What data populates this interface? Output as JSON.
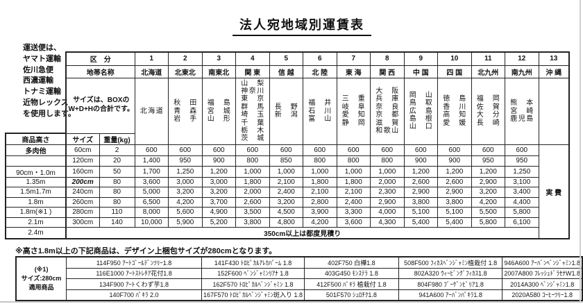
{
  "title": "法人宛地域別運賃表",
  "carrier_note_lines": [
    "運送便は、",
    "ヤマト運輸",
    "佐川急便",
    "西濃運輸",
    "トナミ運輸",
    "近物レックス",
    "を使用します。"
  ],
  "main_table": {
    "kubun_label": "区　分",
    "chitai_label": "地帯名称",
    "size_note_lines": [
      "サイズは、BOXの",
      "W+D+Hの合計です。"
    ],
    "product_height_label": "商品高さ",
    "size_label": "サイズ",
    "weight_label": "重量(kg)",
    "okinawa_fee": "実 費",
    "zones": [
      {
        "no": "1",
        "name": "北海道",
        "prefs": [
          "北海道"
        ]
      },
      {
        "no": "2",
        "name": "北東北",
        "prefs": [
          "秋 田",
          "青 森",
          "岩 手"
        ]
      },
      {
        "no": "3",
        "name": "南東北",
        "prefs": [
          "福 島",
          "宮 城",
          "山 形"
        ]
      },
      {
        "no": "4",
        "name": "関 東",
        "prefs": [
          "山 梨",
          "神奈川",
          "東 京",
          "群 馬",
          "埼 玉",
          "千 葉",
          "栃 木",
          "茨 城"
        ]
      },
      {
        "no": "5",
        "name": "信 越",
        "prefs": [
          "長 野",
          "新 潟"
        ]
      },
      {
        "no": "6",
        "name": "北 陸",
        "prefs": [
          "福 井",
          "石 川",
          "富 山"
        ]
      },
      {
        "no": "7",
        "name": "東 海",
        "prefs": [
          "三 重",
          "岐 阜",
          "愛 知",
          "静 岡"
        ]
      },
      {
        "no": "8",
        "name": "関 西",
        "prefs": [
          "大 阪",
          "兵 庫",
          "奈 良",
          "京 都",
          "滋 賀",
          "和歌山"
        ]
      },
      {
        "no": "9",
        "name": "中 国",
        "prefs": [
          "岡 山",
          "鳥 取",
          "広 島",
          "島 根",
          "山 口"
        ]
      },
      {
        "no": "10",
        "name": "四 国",
        "prefs": [
          "徳 島",
          "香 川",
          "高 知",
          "愛 媛"
        ]
      },
      {
        "no": "11",
        "name": "北九州",
        "prefs": [
          "福 岡",
          "佐 賀",
          "大 分",
          "長 崎"
        ]
      },
      {
        "no": "12",
        "name": "南九州",
        "prefs": [
          "熊 本",
          "宮 崎",
          "鹿児島"
        ]
      },
      {
        "no": "13",
        "name": "沖 縄",
        "prefs": []
      }
    ],
    "rows": [
      {
        "height": "多肉他",
        "size": "60cm",
        "weight": "2",
        "size_red": false,
        "fees": [
          "600",
          "600",
          "600",
          "600",
          "600",
          "600",
          "600",
          "600",
          "600",
          "600",
          "600",
          "600"
        ]
      },
      {
        "height": "",
        "size": "120cm",
        "weight": "20",
        "size_red": false,
        "fees": [
          "1,400",
          "950",
          "900",
          "800",
          "850",
          "800",
          "800",
          "800",
          "900",
          "900",
          "950",
          "950"
        ]
      },
      {
        "height": "90cm・1.0m",
        "size": "160cm",
        "weight": "50",
        "size_red": false,
        "fees": [
          "1,700",
          "1,250",
          "1,200",
          "1,000",
          "1,000",
          "1,000",
          "1,000",
          "1,000",
          "1,200",
          "1,200",
          "1,200",
          "1,250"
        ]
      },
      {
        "height": "1.35m",
        "size": "200cm",
        "weight": "80",
        "size_red": true,
        "fees": [
          "3,600",
          "3,000",
          "3,000",
          "1,800",
          "2,100",
          "1,800",
          "1,800",
          "2,000",
          "2,600",
          "2,600",
          "2,900",
          "3,100"
        ]
      },
      {
        "height": "1.5m1.7m",
        "size": "240cm",
        "weight": "80",
        "size_red": false,
        "fees": [
          "5,000",
          "3,200",
          "3,200",
          "2,000",
          "2,400",
          "2,100",
          "2,100",
          "2,300",
          "2,900",
          "2,900",
          "3,200",
          "3,400"
        ]
      },
      {
        "height": "1.8m",
        "size": "260cm",
        "weight": "80",
        "size_red": false,
        "fees": [
          "6,500",
          "4,200",
          "3,700",
          "2,600",
          "3,200",
          "2,800",
          "2,400",
          "2,900",
          "3,800",
          "3,800",
          "4,200",
          "4,400"
        ]
      },
      {
        "height": "1.8m(※1 )",
        "size": "280cm",
        "weight": "110",
        "size_red": false,
        "fees": [
          "8,000",
          "5,600",
          "4,900",
          "3,500",
          "4,500",
          "3,900",
          "3,300",
          "4,000",
          "5,100",
          "5,100",
          "5,500",
          "5,800"
        ]
      },
      {
        "height": "2.1m",
        "size": "300cm",
        "weight": "140",
        "size_red": false,
        "fees": [
          "10,000",
          "5,900",
          "5,200",
          "3,800",
          "4,800",
          "4,200",
          "3,600",
          "4,300",
          "5,400",
          "5,400",
          "5,800",
          "6,100"
        ]
      }
    ],
    "over_row": {
      "height": "2.4m",
      "note": "350cm以上は都度見積り"
    }
  },
  "footnote": "※高さ1.8m以上の下記商品は、デザイン上梱包サイズが280cmとなります。",
  "size280_table": {
    "label_lines": [
      "(※1)",
      "サイズ:280cm",
      "適用商品"
    ],
    "columns": [
      [
        "114F950 ｱｰﾄｺﾞｰﾙﾃﾞﾝﾂﾘｰ1.8",
        "116E1000 ｱｰﾄｽﾄﾚﾁｱ花付1.8",
        "134F900 ｱｰﾄくわず芋1.8",
        "140F700 ﾊﾟｷﾗ 2.0"
      ],
      [
        "141F430 ﾄﾛﾋﾟｶﾙｱﾚｶﾊﾟｰﾑ 1.8",
        "152F600 ﾍﾞﾝｼﾞｬﾐﾝﾘｱﾅ 1.8",
        "162F570 ﾄﾛﾋﾟｶﾙﾍﾞﾝｼﾞｬﾐﾝ 1.8",
        "167F570 ﾄﾛﾋﾟｶﾙﾍﾞﾝｼﾞｬﾐﾝ斑入り 1.8"
      ],
      [
        "402F750 白樺1.8",
        "403G450 ﾓﾝｽﾃﾗ 1.8",
        "412F500 ﾊﾟｷﾗ 植栽付 1.8",
        "501F570 ｼｭﾛﾁｸ1.8"
      ],
      [
        "508F500 ﾌｨｶｽﾍﾞﾝｼﾞｬﾐﾝ植栽付 1.8",
        "802A320 ｳｨｰﾋﾞﾝｸﾞﾌｨｶｽ1.8",
        "804F980 ﾌﾞｰｹﾞﾝﾋﾞﾘｱ1.8",
        "941A600 ｱｰﾊﾞﾝﾊﾟｷﾗ1.8"
      ],
      [
        "946A600 ｱｰﾊﾞﾝﾍﾞﾝｼﾞｬﾐﾝ1.8",
        "2007A800 ﾌﾚｯｼｭﾄﾞﾗｾﾅW1.8",
        "2014A300 ﾍﾞﾝｼﾞｬﾐﾝ1.8",
        "2020A580 ｺｰﾋｰﾂﾘｰ1.8"
      ]
    ]
  },
  "colors": {
    "ink": "#111111",
    "border": "#222222",
    "accent_red": "#d93025"
  }
}
